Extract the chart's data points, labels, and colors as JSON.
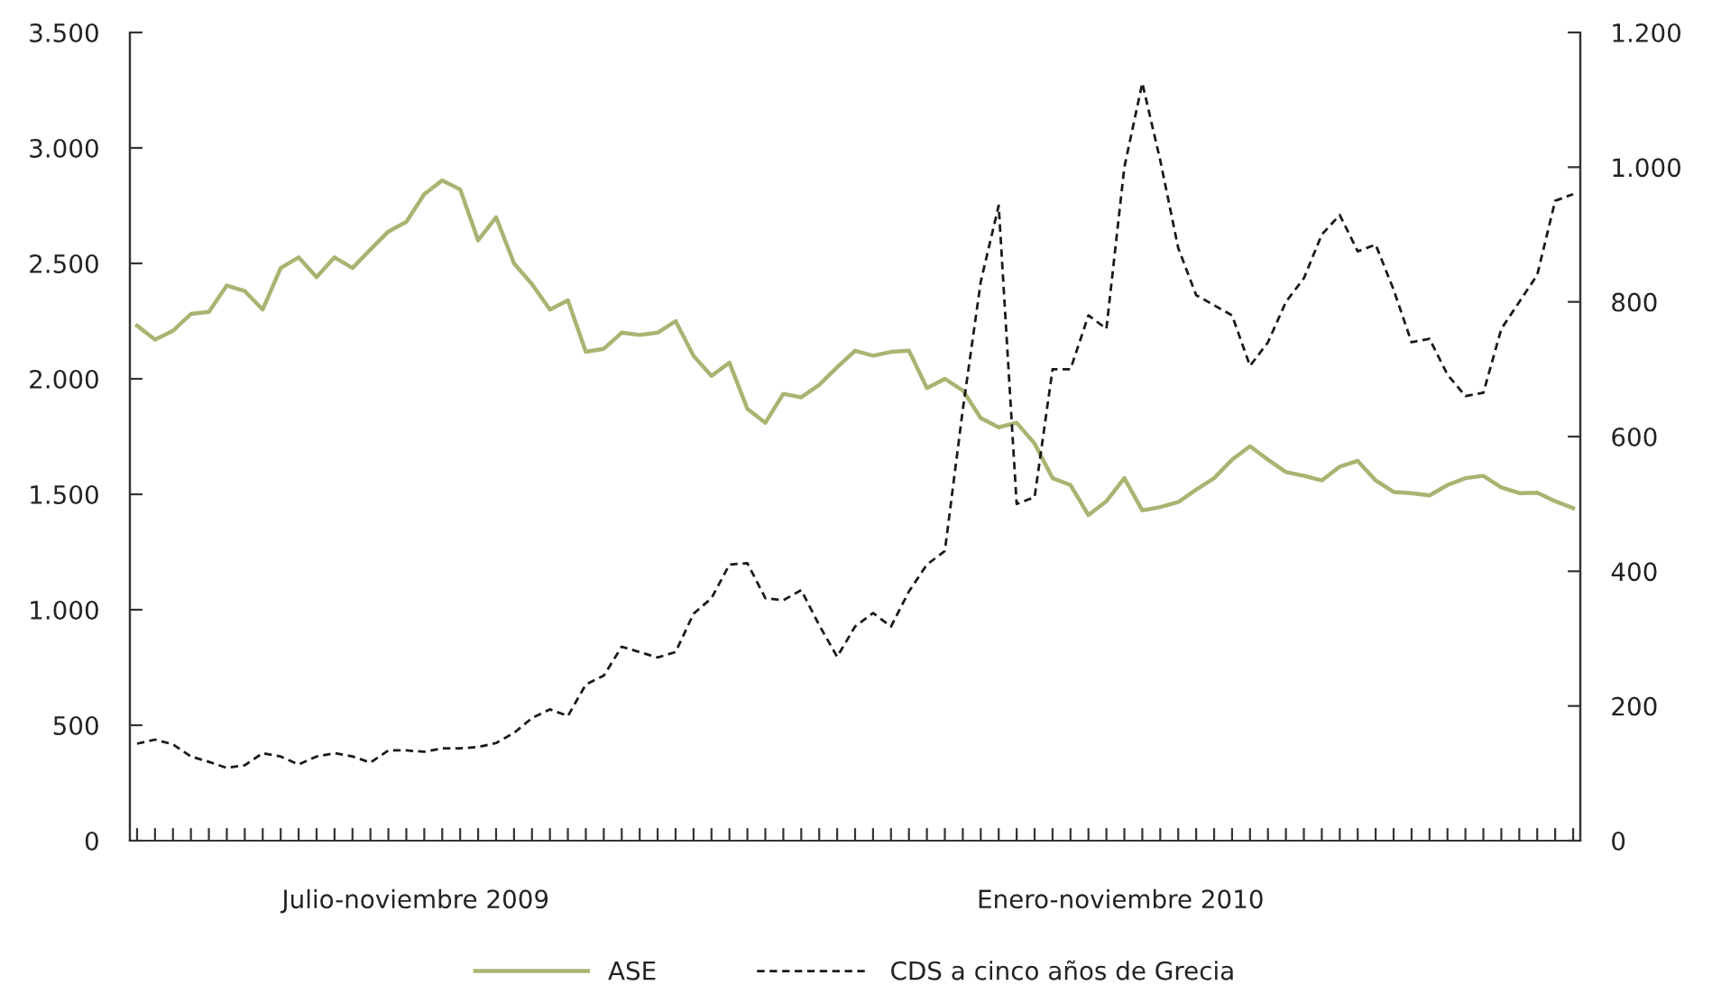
{
  "chart_data": {
    "type": "line",
    "categories": [
      null,
      null,
      null,
      null,
      null,
      null,
      null,
      null,
      null,
      null,
      null,
      null,
      null,
      null,
      null,
      null,
      null,
      null,
      null,
      null,
      null,
      null,
      null,
      null,
      null,
      null,
      null,
      null,
      null,
      null,
      null,
      null,
      null,
      null,
      null,
      null,
      null,
      null,
      null,
      null,
      null,
      null,
      null,
      null,
      null,
      null,
      null,
      null,
      null,
      null,
      null,
      null,
      null,
      null,
      null,
      null,
      null,
      null,
      null,
      null,
      null,
      null,
      null,
      null,
      null,
      null,
      null,
      null,
      null,
      null,
      null,
      null,
      null,
      null,
      null,
      null,
      null,
      null,
      null,
      null,
      null
    ],
    "ylim": [
      0,
      3500
    ],
    "yticks": [
      0,
      500,
      {
        "value": 1000,
        "label": "1.000"
      },
      {
        "value": 1500,
        "label": "1.500"
      },
      {
        "value": 2000,
        "label": "2.000"
      },
      {
        "value": 2500,
        "label": "2.500"
      },
      {
        "value": 3000,
        "label": "3.000"
      },
      {
        "value": 3500,
        "label": "3.500"
      }
    ],
    "y2lim": [
      0,
      1200
    ],
    "y2ticks": [
      0,
      200,
      400,
      600,
      800,
      {
        "value": 1000,
        "label": "1.000"
      },
      {
        "value": 1200,
        "label": "1.200"
      }
    ],
    "annotations": [
      "Julio-noviembre 2009",
      "Enero-noviembre 2010"
    ],
    "legend": "bottom",
    "grid": false,
    "series": [
      {
        "name": "ASE",
        "color": "#a9b472",
        "line_style": "solid",
        "values": [
          2230,
          2170,
          2208,
          2281,
          2290,
          2404,
          2380,
          2300,
          2480,
          2526,
          2440,
          2526,
          2480,
          2560,
          2638,
          2680,
          2800,
          2859,
          2820,
          2600,
          2700,
          2500,
          2410,
          2300,
          2340,
          2117,
          2130,
          2200,
          2190,
          2200,
          2250,
          2100,
          2013,
          2070,
          1870,
          1810,
          1935,
          1920,
          1974,
          2050,
          2122,
          2100,
          2117,
          2122,
          1960,
          2000,
          1950,
          1830,
          1790,
          1810,
          1720,
          1570,
          1540,
          1410,
          1470,
          1570,
          1430,
          1445,
          1466,
          1520,
          1570,
          1650,
          1708,
          1650,
          1596,
          1580,
          1560,
          1620,
          1645,
          1560,
          1510,
          1505,
          1495,
          1540,
          1570,
          1580,
          1530,
          1505,
          1507,
          1470,
          1440
        ]
      },
      {
        "name": "CDS a cinco años de Grecia",
        "color": "#1a1a1a",
        "line_style": "dashed",
        "axis": "y2",
        "values": [
          144,
          150,
          143,
          125,
          117,
          108,
          112,
          130,
          125,
          113,
          125,
          130,
          125,
          116,
          134,
          134,
          132,
          137,
          137,
          139,
          145,
          160,
          182,
          195,
          185,
          232,
          245,
          288,
          280,
          272,
          280,
          337,
          360,
          410,
          412,
          360,
          357,
          372,
          320,
          273,
          318,
          338,
          318,
          370,
          410,
          430,
          640,
          830,
          943,
          500,
          510,
          700,
          700,
          780,
          760,
          1000,
          1125,
          1010,
          880,
          810,
          795,
          780,
          705,
          740,
          800,
          835,
          900,
          929,
          875,
          885,
          818,
          740,
          745,
          692,
          660,
          665,
          760,
          800,
          840,
          950,
          960
        ]
      }
    ]
  }
}
